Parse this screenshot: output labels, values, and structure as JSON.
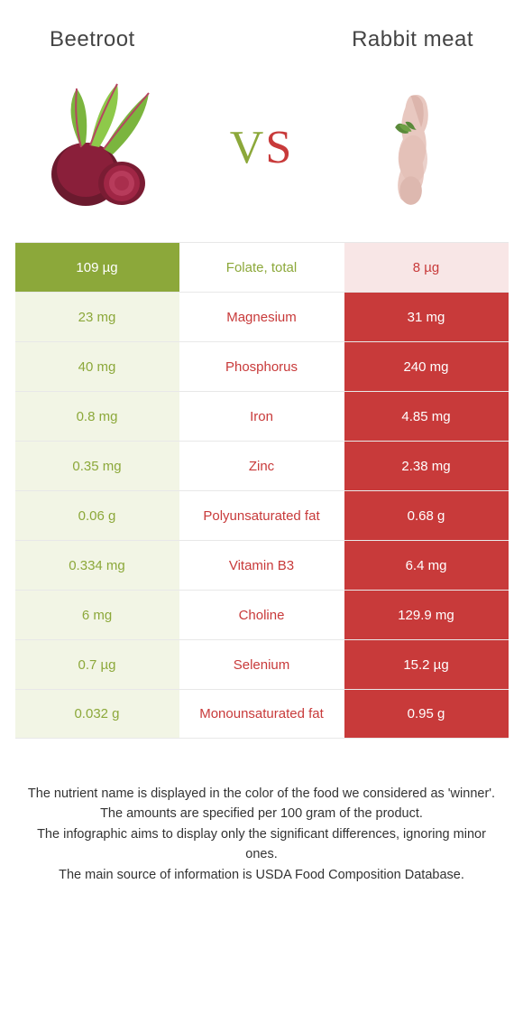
{
  "colors": {
    "left": "#8ca83a",
    "right": "#c83a3a",
    "left_dim": "#f2f5e5",
    "right_dim": "#f8e6e6",
    "left_text": "#8ca83a",
    "right_text": "#c83a3a"
  },
  "header": {
    "left_title": "Beetroot",
    "right_title": "Rabbit meat",
    "vs_v": "V",
    "vs_s": "S"
  },
  "rows": [
    {
      "left": "109 µg",
      "label": "Folate, total",
      "right": "8 µg",
      "winner": "left"
    },
    {
      "left": "23 mg",
      "label": "Magnesium",
      "right": "31 mg",
      "winner": "right"
    },
    {
      "left": "40 mg",
      "label": "Phosphorus",
      "right": "240 mg",
      "winner": "right"
    },
    {
      "left": "0.8 mg",
      "label": "Iron",
      "right": "4.85 mg",
      "winner": "right"
    },
    {
      "left": "0.35 mg",
      "label": "Zinc",
      "right": "2.38 mg",
      "winner": "right"
    },
    {
      "left": "0.06 g",
      "label": "Polyunsaturated fat",
      "right": "0.68 g",
      "winner": "right"
    },
    {
      "left": "0.334 mg",
      "label": "Vitamin B3",
      "right": "6.4 mg",
      "winner": "right"
    },
    {
      "left": "6 mg",
      "label": "Choline",
      "right": "129.9 mg",
      "winner": "right"
    },
    {
      "left": "0.7 µg",
      "label": "Selenium",
      "right": "15.2 µg",
      "winner": "right"
    },
    {
      "left": "0.032 g",
      "label": "Monounsaturated fat",
      "right": "0.95 g",
      "winner": "right"
    }
  ],
  "footer": {
    "line1": "The nutrient name is displayed in the color of the food we considered as 'winner'.",
    "line2": "The amounts are specified per 100 gram of the product.",
    "line3": "The infographic aims to display only the significant differences, ignoring minor ones.",
    "line4": "The main source of information is USDA Food Composition Database."
  }
}
